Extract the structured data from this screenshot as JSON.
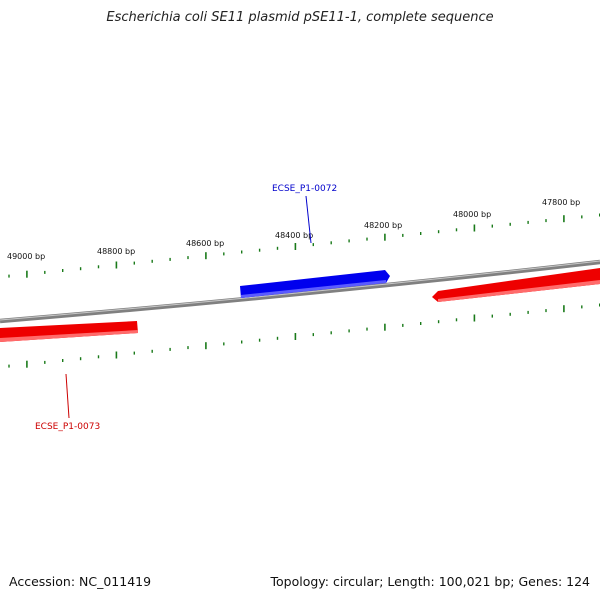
{
  "title": "Escherichia coli SE11 plasmid pSE11-1, complete sequence",
  "footer": {
    "accession": "Accession: NC_011419",
    "summary": "Topology: circular; Length: 100,021 bp; Genes: 124"
  },
  "colors": {
    "backbone": "#808080",
    "forward_gene": "#0000ee",
    "reverse_gene": "#ee0000",
    "ticks": "#1a7a1a",
    "forward_label": "#0000cc",
    "reverse_label": "#cc0000"
  },
  "scale_labels": [
    "49000 bp",
    "48800 bp",
    "48600 bp",
    "48400 bp",
    "48200 bp",
    "48000 bp",
    "47800 bp"
  ],
  "genes": [
    {
      "label": "ECSE_P1-0072",
      "strand": "forward"
    },
    {
      "label": "ECSE_P1-0073",
      "strand": "reverse"
    },
    {
      "label": "",
      "strand": "reverse"
    }
  ]
}
